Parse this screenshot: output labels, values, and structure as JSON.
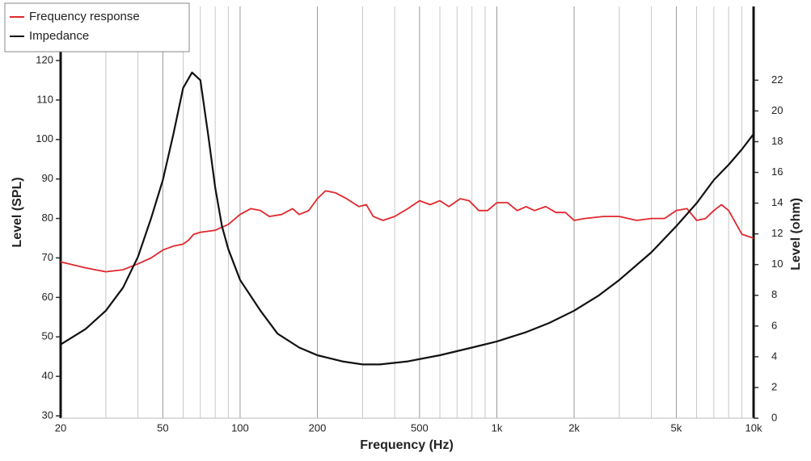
{
  "chart_data": {
    "type": "line",
    "x_label": "Frequency (Hz)",
    "y_label": "Level (SPL)",
    "y2_label": "Level (ohm)",
    "xscale": "log",
    "xlim": [
      20,
      10000
    ],
    "xticks": [
      20,
      50,
      100,
      200,
      500,
      {
        "value": 1000,
        "label": "1k"
      },
      {
        "value": 2000,
        "label": "2k"
      },
      {
        "value": 5000,
        "label": "5k"
      },
      {
        "value": 10000,
        "label": "10k"
      }
    ],
    "xminor": [
      30,
      40,
      60,
      70,
      80,
      90,
      300,
      400,
      600,
      700,
      800,
      900,
      3000,
      4000,
      6000,
      7000,
      8000,
      9000
    ],
    "ylim": [
      29.4,
      133.7
    ],
    "yticks": [
      30,
      40,
      50,
      60,
      70,
      80,
      90,
      100,
      110,
      120
    ],
    "y2lim": [
      0,
      26.8
    ],
    "y2ticks": [
      0,
      2,
      4,
      6,
      8,
      10,
      12,
      14,
      16,
      18,
      20,
      22
    ],
    "legend": "top-left",
    "series": [
      {
        "name": "Frequency response",
        "color": "#e0282e",
        "x": [
          20,
          25,
          30,
          35,
          40,
          45,
          50,
          55,
          60,
          63,
          66,
          70,
          80,
          90,
          100,
          110,
          120,
          130,
          145,
          160,
          170,
          185,
          200,
          215,
          235,
          260,
          290,
          310,
          330,
          360,
          400,
          450,
          500,
          550,
          600,
          650,
          720,
          780,
          850,
          920,
          1000,
          1100,
          1200,
          1300,
          1400,
          1550,
          1700,
          1850,
          2000,
          2200,
          2600,
          3000,
          3500,
          4000,
          4500,
          5000,
          5500,
          6000,
          6500,
          7000,
          7500,
          8000,
          9000,
          10000
        ],
        "values": [
          69,
          67.5,
          66.5,
          67,
          68.5,
          70,
          72,
          73,
          73.5,
          74.5,
          76,
          76.5,
          77,
          78.5,
          81,
          82.5,
          82,
          80.5,
          81,
          82.5,
          81,
          82,
          85,
          87,
          86.5,
          85,
          83,
          83.5,
          80.5,
          79.5,
          80.5,
          82.5,
          84.5,
          83.5,
          84.5,
          83,
          85,
          84.5,
          82,
          82,
          84,
          84,
          82,
          83,
          82,
          83,
          81.5,
          81.5,
          79.5,
          80,
          80.5,
          80.5,
          79.5,
          80,
          80,
          82,
          82.5,
          79.5,
          80,
          82,
          83.5,
          82,
          76,
          75
        ]
      },
      {
        "name": "Impedance",
        "color": "#111111",
        "axis": "y2",
        "x": [
          20,
          25,
          30,
          35,
          40,
          45,
          50,
          55,
          60,
          65,
          70,
          75,
          80,
          85,
          90,
          100,
          120,
          140,
          170,
          200,
          250,
          300,
          350,
          450,
          600,
          800,
          1000,
          1300,
          1600,
          2000,
          2500,
          3000,
          4000,
          5000,
          6000,
          7000,
          8000,
          9000,
          10000
        ],
        "values": [
          4.8,
          5.8,
          7,
          8.5,
          10.5,
          13,
          15.5,
          18.5,
          21.5,
          22.5,
          22,
          18.5,
          15,
          12.5,
          11,
          9,
          7,
          5.5,
          4.6,
          4.1,
          3.7,
          3.5,
          3.5,
          3.7,
          4.1,
          4.6,
          5,
          5.6,
          6.2,
          7,
          8,
          9,
          10.8,
          12.5,
          14,
          15.5,
          16.5,
          17.5,
          18.5
        ]
      }
    ]
  }
}
